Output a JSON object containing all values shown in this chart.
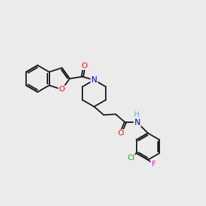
{
  "bg_color": "#ebebeb",
  "bond_color": "#1a1a1a",
  "bond_width": 1.4,
  "atom_colors": {
    "O": "#ff0000",
    "N": "#0000cc",
    "H": "#6ab0b0",
    "Cl": "#00bb00",
    "F": "#ee00ee"
  },
  "font_size": 8.5
}
